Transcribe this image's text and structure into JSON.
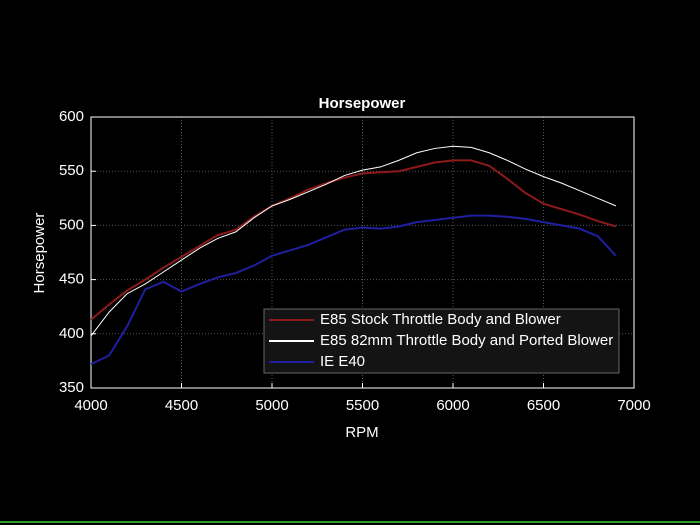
{
  "chart_data": {
    "type": "line",
    "title": "Horsepower",
    "xlabel": "RPM",
    "ylabel": "Horsepower",
    "x": [
      4000,
      4100,
      4200,
      4300,
      4400,
      4500,
      4600,
      4700,
      4800,
      4900,
      5000,
      5100,
      5200,
      5300,
      5400,
      5500,
      5600,
      5700,
      5800,
      5900,
      6000,
      6100,
      6200,
      6300,
      6400,
      6500,
      6600,
      6700,
      6800,
      6900
    ],
    "series": [
      {
        "name": "E85 Stock Throttle Body and Blower",
        "color": "#8b1a1a",
        "values": [
          413,
          427,
          440,
          450,
          461,
          471,
          481,
          491,
          496,
          508,
          518,
          525,
          533,
          539,
          544,
          548,
          549,
          550,
          554,
          558,
          560,
          560,
          555,
          543,
          530,
          520,
          515,
          510,
          504,
          499
        ]
      },
      {
        "name": "E85 82mm Throttle Body and Ported Blower",
        "color": "#ffffff",
        "values": [
          398,
          420,
          437,
          446,
          457,
          468,
          479,
          488,
          494,
          507,
          518,
          524,
          531,
          538,
          546,
          551,
          554,
          560,
          567,
          571,
          573,
          572,
          567,
          560,
          552,
          545,
          539,
          532,
          525,
          518
        ]
      },
      {
        "name": "IE E40",
        "color": "#1f1fa0",
        "values": [
          372,
          380,
          407,
          441,
          448,
          439,
          446,
          452,
          456,
          463,
          472,
          477,
          482,
          489,
          496,
          498,
          497,
          499,
          503,
          505,
          507,
          509,
          509,
          508,
          506,
          503,
          500,
          497,
          490,
          472
        ]
      }
    ],
    "xlim": [
      4000,
      7000
    ],
    "xticks": [
      4000,
      4500,
      5000,
      5500,
      6000,
      6500,
      7000
    ],
    "ylim": [
      350,
      600
    ],
    "yticks": [
      350,
      400,
      450,
      500,
      550,
      600
    ],
    "grid": true,
    "legend_loc": "lower right"
  }
}
